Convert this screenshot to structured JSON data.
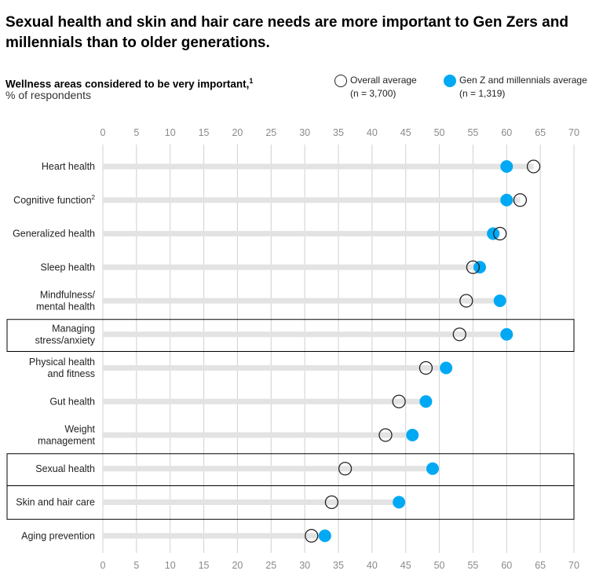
{
  "header": {
    "title": "Sexual health and skin and hair care needs are more important to Gen Zers and millennials than to older generations.",
    "subtitle": "Wellness areas considered to be very important,",
    "subtitle_footnote": "1",
    "unit": "% of respondents"
  },
  "legend": {
    "overall": {
      "label": "Overall average",
      "n": "(n = 3,700)"
    },
    "genz": {
      "label": "Gen Z and millennials average",
      "n": "(n = 1,319)"
    }
  },
  "colors": {
    "overall_marker_fill": "#ffffff",
    "overall_marker_stroke": "#222222",
    "genz_marker": "#00a9f4",
    "bar": "#e3e3e3",
    "grid": "#d0d0d0",
    "highlight_box": "#000000"
  },
  "chart_data": {
    "type": "dot-plot",
    "xlim": [
      0,
      70
    ],
    "xticks": [
      0,
      5,
      10,
      15,
      20,
      25,
      30,
      35,
      40,
      45,
      50,
      55,
      60,
      65,
      70
    ],
    "categories": [
      {
        "label": "Heart health",
        "footnote": ""
      },
      {
        "label": "Cognitive function",
        "footnote": "2"
      },
      {
        "label": "Generalized health",
        "footnote": ""
      },
      {
        "label": "Sleep health",
        "footnote": ""
      },
      {
        "label": "Mindfulness/\nmental health",
        "footnote": ""
      },
      {
        "label": "Managing\nstress/anxiety",
        "footnote": ""
      },
      {
        "label": "Physical health\nand fitness",
        "footnote": ""
      },
      {
        "label": "Gut health",
        "footnote": ""
      },
      {
        "label": "Weight\nmanagement",
        "footnote": ""
      },
      {
        "label": "Sexual health",
        "footnote": ""
      },
      {
        "label": "Skin and hair care",
        "footnote": ""
      },
      {
        "label": "Aging prevention",
        "footnote": ""
      }
    ],
    "series": [
      {
        "name": "Overall average",
        "values": [
          64,
          62,
          59,
          55,
          54,
          53,
          48,
          44,
          42,
          36,
          34,
          31
        ]
      },
      {
        "name": "Gen Z and millennials average",
        "values": [
          60,
          60,
          58,
          56,
          59,
          60,
          51,
          48,
          46,
          49,
          44,
          33
        ]
      }
    ],
    "highlighted_groups": [
      [
        5
      ],
      [
        9,
        10
      ]
    ]
  }
}
